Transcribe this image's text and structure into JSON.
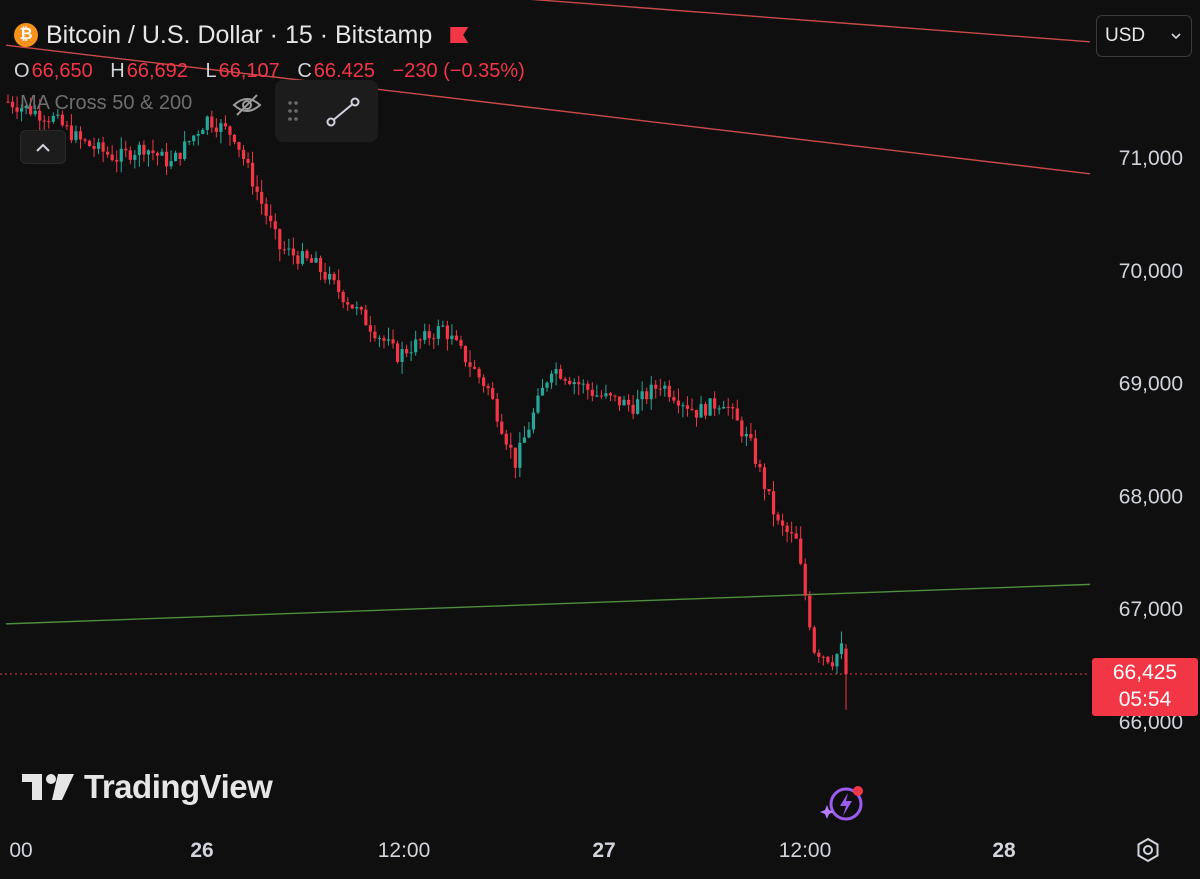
{
  "header": {
    "coin_icon": "bitcoin-icon",
    "coin_glyph": "₿",
    "symbol_title": "Bitcoin / U.S. Dollar · 15 · Bitstamp",
    "flag_icon": "flag-icon"
  },
  "ohlc": {
    "o_label": "O",
    "o_value": "66,650",
    "h_label": "H",
    "h_value": "66,692",
    "l_label": "L",
    "l_value": "66,107",
    "c_label": "C",
    "c_value": "66.425",
    "change": "−230 (−0.35%)"
  },
  "indicator": {
    "name": "MA Cross 50 & 200",
    "visibility_icon": "eye-off-icon",
    "drag_icon": "drag-handle-icon",
    "draw_icon": "line-tool-icon",
    "collapse_icon": "chevron-up-icon"
  },
  "currency": {
    "selected": "USD",
    "icon": "chevron-down-icon"
  },
  "price_axis": {
    "labels": [
      "71,000",
      "70,000",
      "69,000",
      "68,000",
      "67,000",
      "66,000"
    ],
    "last_price": "66,425",
    "countdown": "05:54"
  },
  "time_axis": {
    "labels": [
      "00",
      "26",
      "12:00",
      "27",
      "12:00",
      "28"
    ],
    "bold": [
      false,
      true,
      false,
      true,
      false,
      true
    ]
  },
  "branding": {
    "logo_text": "TradingView",
    "logo_icon": "tradingview-logo-icon"
  },
  "colors": {
    "up": "#26a69a",
    "down": "#f23645",
    "background": "#0f0f0f",
    "trendline_red": "#c74a4a",
    "trendline_green": "#4f8f3e",
    "accent": "#f23645"
  },
  "chart_data": {
    "type": "candlestick",
    "title": "Bitcoin / U.S. Dollar · 15 · Bitstamp",
    "interval": "15",
    "ylim": [
      65800,
      72500
    ],
    "y_ticks": [
      71000,
      70000,
      69000,
      68000,
      67000,
      66000
    ],
    "x_labels": [
      "00",
      "26",
      "12:00",
      "27",
      "12:00",
      "28"
    ],
    "last": {
      "open": 66650,
      "high": 66692,
      "low": 66107,
      "close": 66425,
      "change": -230,
      "change_pct": -0.35
    },
    "trend_path": [
      [
        71500,
        0
      ],
      [
        71350,
        10
      ],
      [
        71150,
        6
      ],
      [
        71000,
        8
      ],
      [
        71100,
        6
      ],
      [
        70950,
        6
      ],
      [
        71350,
        8
      ],
      [
        71200,
        6
      ],
      [
        70200,
        10
      ],
      [
        70050,
        8
      ],
      [
        69600,
        10
      ],
      [
        69250,
        8
      ],
      [
        69500,
        10
      ],
      [
        68950,
        10
      ],
      [
        68300,
        6
      ],
      [
        69150,
        8
      ],
      [
        68900,
        10
      ],
      [
        68800,
        8
      ],
      [
        69000,
        6
      ],
      [
        68750,
        8
      ],
      [
        68850,
        6
      ],
      [
        68450,
        6
      ],
      [
        67750,
        6
      ],
      [
        67600,
        4
      ],
      [
        66650,
        4
      ],
      [
        66550,
        4
      ],
      [
        66700,
        3
      ]
    ],
    "trendlines": [
      {
        "color": "red",
        "from": [
          0,
          72760
        ],
        "to": [
          1,
          72030
        ]
      },
      {
        "color": "red",
        "from": [
          0,
          72000
        ],
        "to": [
          1,
          70860
        ]
      },
      {
        "color": "green",
        "from": [
          0,
          66870
        ],
        "to": [
          1,
          67220
        ]
      }
    ]
  }
}
